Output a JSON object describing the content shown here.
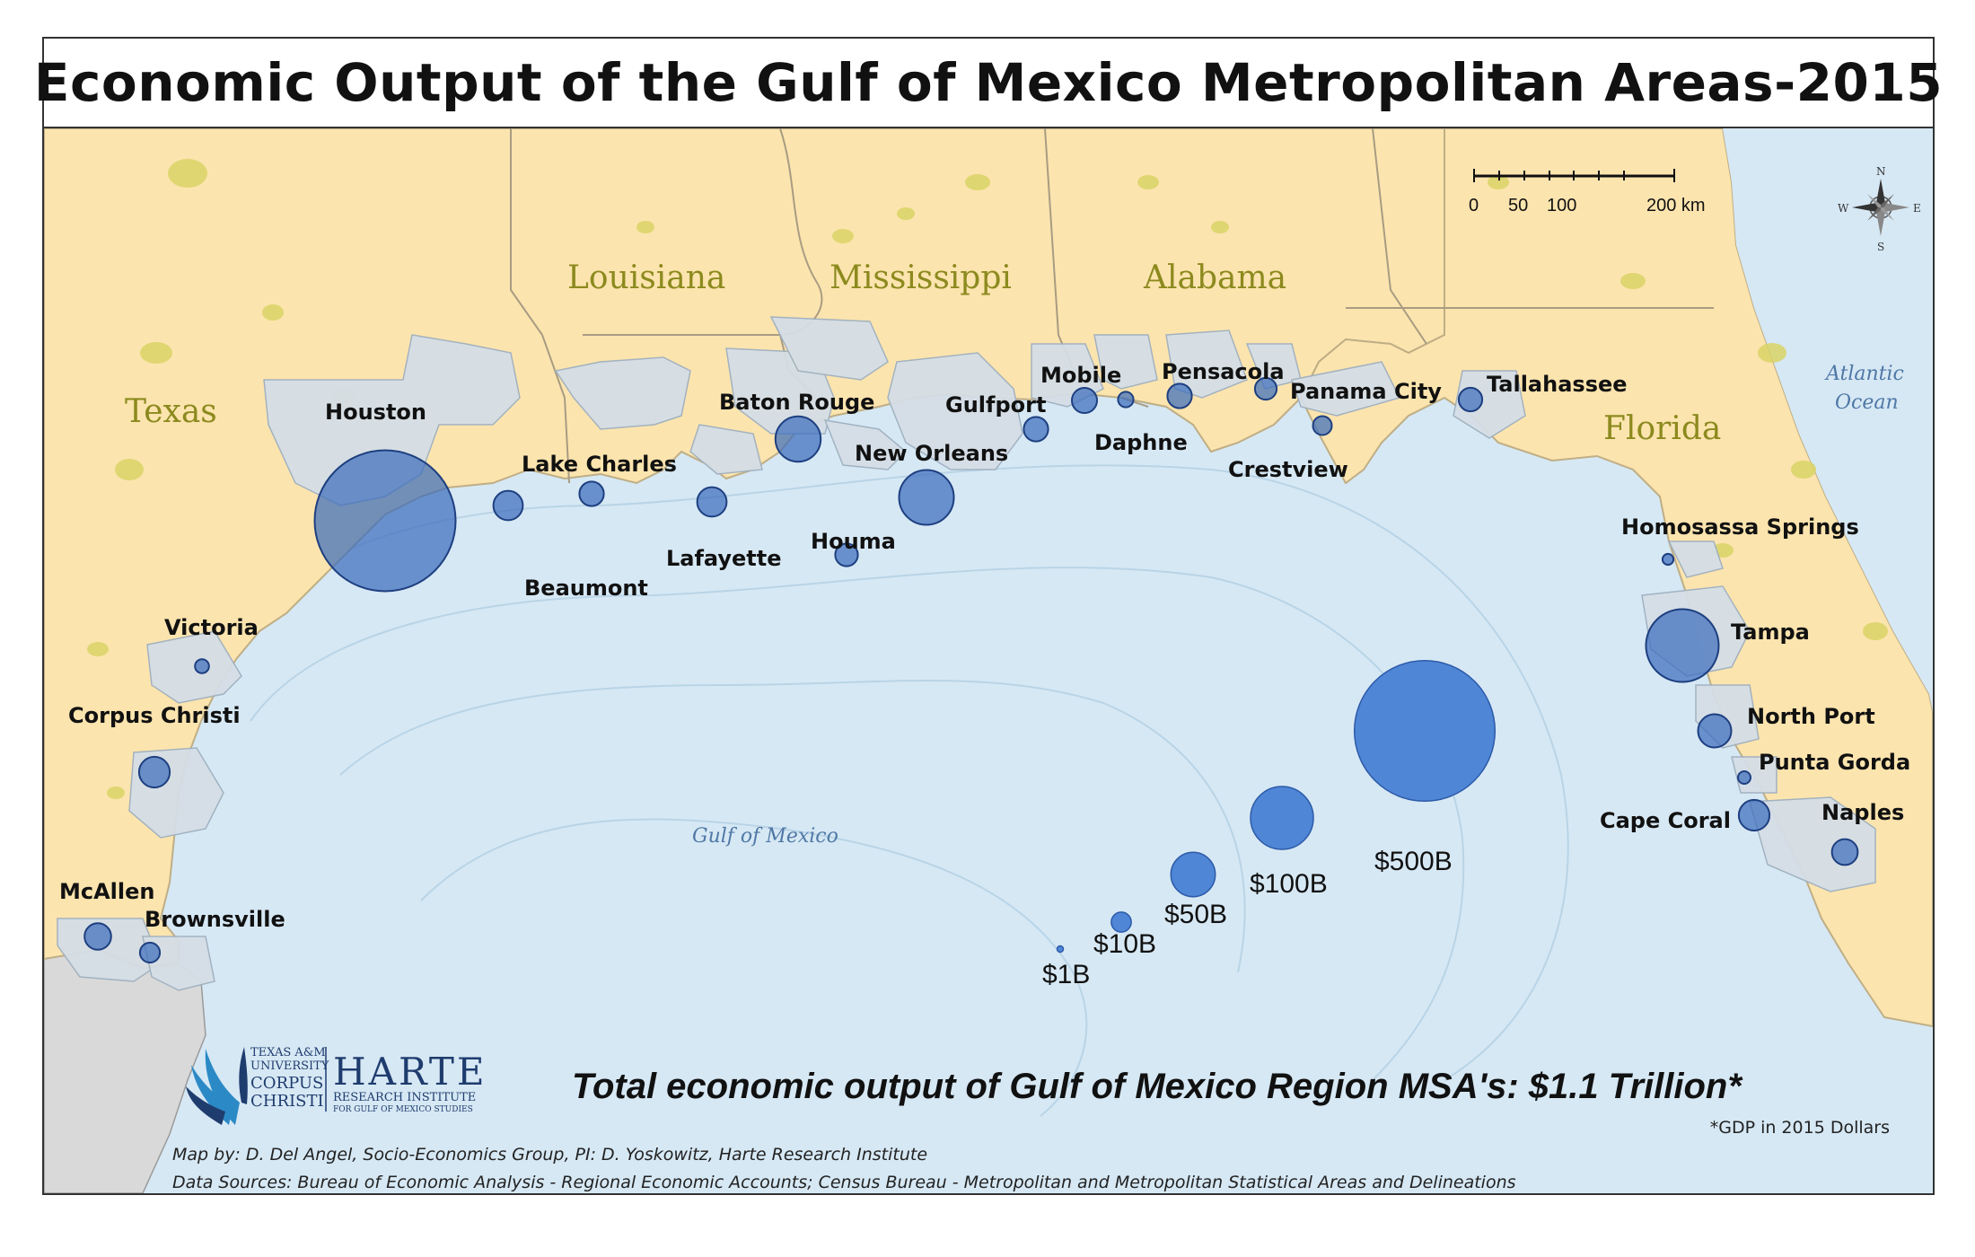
{
  "title": "Economic Output of the Gulf of Mexico Metropolitan Areas-2015",
  "states": [
    "Texas",
    "Louisiana",
    "Mississippi",
    "Alabama",
    "Florida"
  ],
  "water_bodies": [
    "Gulf of Mexico",
    "Atlantic",
    "Ocean"
  ],
  "cities": [
    {
      "name": "Houston",
      "gdp_billion": 503
    },
    {
      "name": "Beaumont",
      "gdp_billion": 22
    },
    {
      "name": "Lake Charles",
      "gdp_billion": 15
    },
    {
      "name": "Lafayette",
      "gdp_billion": 22
    },
    {
      "name": "Baton Rouge",
      "gdp_billion": 52
    },
    {
      "name": "Houma",
      "gdp_billion": 13
    },
    {
      "name": "New Orleans",
      "gdp_billion": 76
    },
    {
      "name": "Gulfport",
      "gdp_billion": 15
    },
    {
      "name": "Mobile",
      "gdp_billion": 16
    },
    {
      "name": "Daphne",
      "gdp_billion": 6
    },
    {
      "name": "Pensacola",
      "gdp_billion": 15
    },
    {
      "name": "Crestview",
      "gdp_billion": 9
    },
    {
      "name": "Panama City",
      "gdp_billion": 12
    },
    {
      "name": "Tallahassee",
      "gdp_billion": 14
    },
    {
      "name": "Victoria",
      "gdp_billion": 5
    },
    {
      "name": "Corpus Christi",
      "gdp_billion": 24
    },
    {
      "name": "McAllen",
      "gdp_billion": 18
    },
    {
      "name": "Brownsville",
      "gdp_billion": 10
    },
    {
      "name": "Homosassa Springs",
      "gdp_billion": 3
    },
    {
      "name": "Tampa",
      "gdp_billion": 134
    },
    {
      "name": "North Port",
      "gdp_billion": 28
    },
    {
      "name": "Punta Gorda",
      "gdp_billion": 4
    },
    {
      "name": "Cape Coral",
      "gdp_billion": 24
    },
    {
      "name": "Naples",
      "gdp_billion": 17
    }
  ],
  "legend": [
    {
      "label": "$1B",
      "value": 1
    },
    {
      "label": "$10B",
      "value": 10
    },
    {
      "label": "$50B",
      "value": 50
    },
    {
      "label": "$100B",
      "value": 100
    },
    {
      "label": "$500B",
      "value": 500
    }
  ],
  "scale_bar": {
    "ticks": [
      "0",
      "50",
      "100",
      "200 km"
    ]
  },
  "compass": {
    "n": "N",
    "s": "S",
    "e": "E",
    "w": "W"
  },
  "total_text": "Total economic output of Gulf of Mexico Region MSA's: $1.1 Trillion*",
  "gdp_note": "*GDP in 2015 Dollars",
  "credits": [
    "Map by: D. Del Angel, Socio-Economics Group, PI: D. Yoskowitz, Harte Research Institute",
    "Data Sources: Bureau of Economic Analysis - Regional Economic Accounts; Census Bureau - Metropolitan and Metropolitan Statistical Areas and Delineations"
  ],
  "logo": {
    "uni_line1": "TEXAS A&M",
    "uni_line2": "UNIVERSITY",
    "uni_line3": "CORPUS",
    "uni_line4": "CHRISTI",
    "harte": "HARTE",
    "ri_line1": "RESEARCH INSTITUTE",
    "ri_line2": "FOR GULF OF MEXICO STUDIES"
  },
  "colors": {
    "land": "#fce4ae",
    "water": "#d6e8f4",
    "mexico_land": "#d9d9d9",
    "msa_area": "#d5dee6",
    "bubble": "#3d6ebd",
    "legend_bubble": "#4f86d6",
    "urban": "#d9d466"
  }
}
